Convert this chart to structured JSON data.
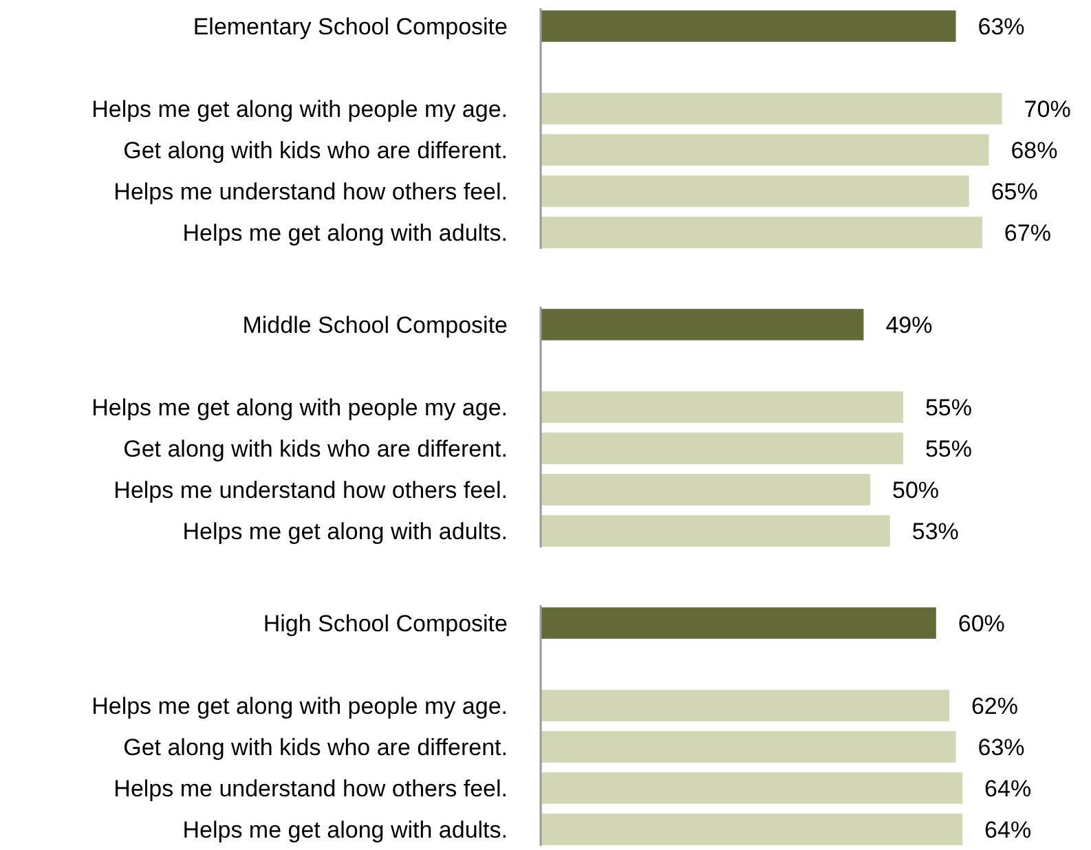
{
  "chart_data": [
    {
      "type": "bar",
      "orientation": "horizontal",
      "tick_labels": "y",
      "categories": [
        "Elementary School Composite",
        null,
        "Helps me get along with people my age.",
        "Get along with kids who are different.",
        "Helps me understand how others feel.",
        "Helps me get along with adults."
      ],
      "values": [
        63,
        null,
        70,
        68,
        65,
        67
      ],
      "value_labels": [
        "63%",
        null,
        "70%",
        "68%",
        "65%",
        "67%"
      ],
      "colors": [
        "#636a37",
        null,
        "#d3d6b5",
        "#d3d6b5",
        "#d3d6b5",
        "#d3d6b5"
      ]
    },
    {
      "type": "bar",
      "orientation": "horizontal",
      "tick_labels": "y",
      "categories": [
        "Middle School Composite",
        null,
        "Helps me get along with people my age.",
        "Get along with kids who are different.",
        "Helps me understand how others feel.",
        "Helps me get along with adults."
      ],
      "values": [
        49,
        null,
        55,
        55,
        50,
        53
      ],
      "value_labels": [
        "49%",
        null,
        "55%",
        "55%",
        "50%",
        "53%"
      ],
      "colors": [
        "#636a37",
        null,
        "#d3d6b5",
        "#d3d6b5",
        "#d3d6b5",
        "#d3d6b5"
      ]
    },
    {
      "type": "bar",
      "orientation": "horizontal",
      "tick_labels": "y",
      "categories": [
        "High School Composite",
        null,
        "Helps me get along with people my age.",
        "Get along with kids who are different.",
        "Helps me understand how others feel.",
        "Helps me get along with adults."
      ],
      "values": [
        60,
        null,
        62,
        63,
        64,
        64
      ],
      "value_labels": [
        "60%",
        null,
        "62%",
        "63%",
        "64%",
        "64%"
      ],
      "colors": [
        "#636a37",
        null,
        "#d3d6b5",
        "#d3d6b5",
        "#d3d6b5",
        "#d3d6b5"
      ]
    }
  ]
}
